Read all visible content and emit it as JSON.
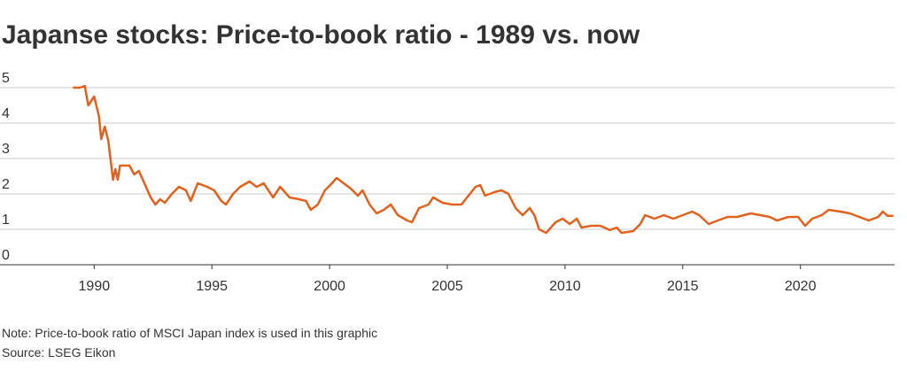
{
  "chart_data": {
    "type": "line",
    "title": "Japanse stocks: Price-to-book ratio - 1989 vs. now",
    "note": "Note: Price-to-book ratio of MSCI Japan index is used in this graphic",
    "source": "Source: LSEG Eikon",
    "color": "#e0621e",
    "x": [
      1989.1,
      1989.4,
      1989.6,
      1989.75,
      1990.0,
      1990.2,
      1990.3,
      1990.45,
      1990.6,
      1990.8,
      1990.9,
      1991.0,
      1991.1,
      1991.5,
      1991.7,
      1991.9,
      1992.1,
      1992.4,
      1992.6,
      1992.8,
      1993.0,
      1993.3,
      1993.6,
      1993.9,
      1994.1,
      1994.4,
      1994.8,
      1995.1,
      1995.4,
      1995.6,
      1995.9,
      1996.2,
      1996.6,
      1996.9,
      1997.2,
      1997.6,
      1997.9,
      1998.3,
      1998.7,
      1999.0,
      1999.2,
      1999.5,
      1999.8,
      2000.1,
      2000.3,
      2000.6,
      2000.9,
      2001.2,
      2001.4,
      2001.7,
      2002.0,
      2002.3,
      2002.6,
      2002.9,
      2003.3,
      2003.5,
      2003.8,
      2004.2,
      2004.4,
      2004.8,
      2005.2,
      2005.6,
      2005.9,
      2006.2,
      2006.4,
      2006.6,
      2007.0,
      2007.3,
      2007.6,
      2007.9,
      2008.2,
      2008.5,
      2008.7,
      2008.9,
      2009.2,
      2009.6,
      2009.9,
      2010.2,
      2010.5,
      2010.7,
      2011.1,
      2011.5,
      2011.9,
      2012.2,
      2012.4,
      2012.9,
      2013.2,
      2013.4,
      2013.8,
      2014.2,
      2014.6,
      2015.0,
      2015.4,
      2015.7,
      2016.1,
      2016.5,
      2016.9,
      2017.3,
      2017.9,
      2018.3,
      2018.7,
      2019.0,
      2019.5,
      2019.9,
      2020.2,
      2020.5,
      2020.9,
      2021.2,
      2021.7,
      2022.1,
      2022.5,
      2022.9,
      2023.3,
      2023.5,
      2023.7,
      2023.95
    ],
    "values": [
      5.0,
      5.0,
      5.05,
      4.5,
      4.75,
      4.2,
      3.55,
      3.9,
      3.5,
      2.4,
      2.7,
      2.4,
      2.8,
      2.8,
      2.55,
      2.65,
      2.35,
      1.9,
      1.7,
      1.85,
      1.75,
      2.0,
      2.2,
      2.1,
      1.8,
      2.3,
      2.2,
      2.1,
      1.8,
      1.7,
      2.0,
      2.2,
      2.35,
      2.2,
      2.3,
      1.9,
      2.2,
      1.9,
      1.85,
      1.8,
      1.55,
      1.7,
      2.1,
      2.3,
      2.45,
      2.3,
      2.15,
      1.95,
      2.1,
      1.7,
      1.45,
      1.55,
      1.7,
      1.4,
      1.25,
      1.2,
      1.6,
      1.7,
      1.9,
      1.75,
      1.7,
      1.7,
      1.95,
      2.2,
      2.25,
      1.95,
      2.05,
      2.1,
      2.0,
      1.6,
      1.4,
      1.6,
      1.4,
      1.0,
      0.9,
      1.2,
      1.3,
      1.15,
      1.3,
      1.05,
      1.1,
      1.1,
      0.98,
      1.05,
      0.9,
      0.95,
      1.15,
      1.4,
      1.3,
      1.4,
      1.3,
      1.4,
      1.5,
      1.4,
      1.15,
      1.25,
      1.35,
      1.35,
      1.45,
      1.4,
      1.35,
      1.25,
      1.35,
      1.35,
      1.1,
      1.3,
      1.4,
      1.55,
      1.5,
      1.45,
      1.35,
      1.25,
      1.35,
      1.5,
      1.38,
      1.38
    ],
    "xlim": [
      1986,
      2024
    ],
    "xticks": [
      1990,
      1995,
      2000,
      2005,
      2010,
      2015,
      2020
    ],
    "ylim": [
      0,
      5
    ],
    "yticks": [
      0,
      1,
      2,
      3,
      4,
      5
    ],
    "grid": true
  }
}
